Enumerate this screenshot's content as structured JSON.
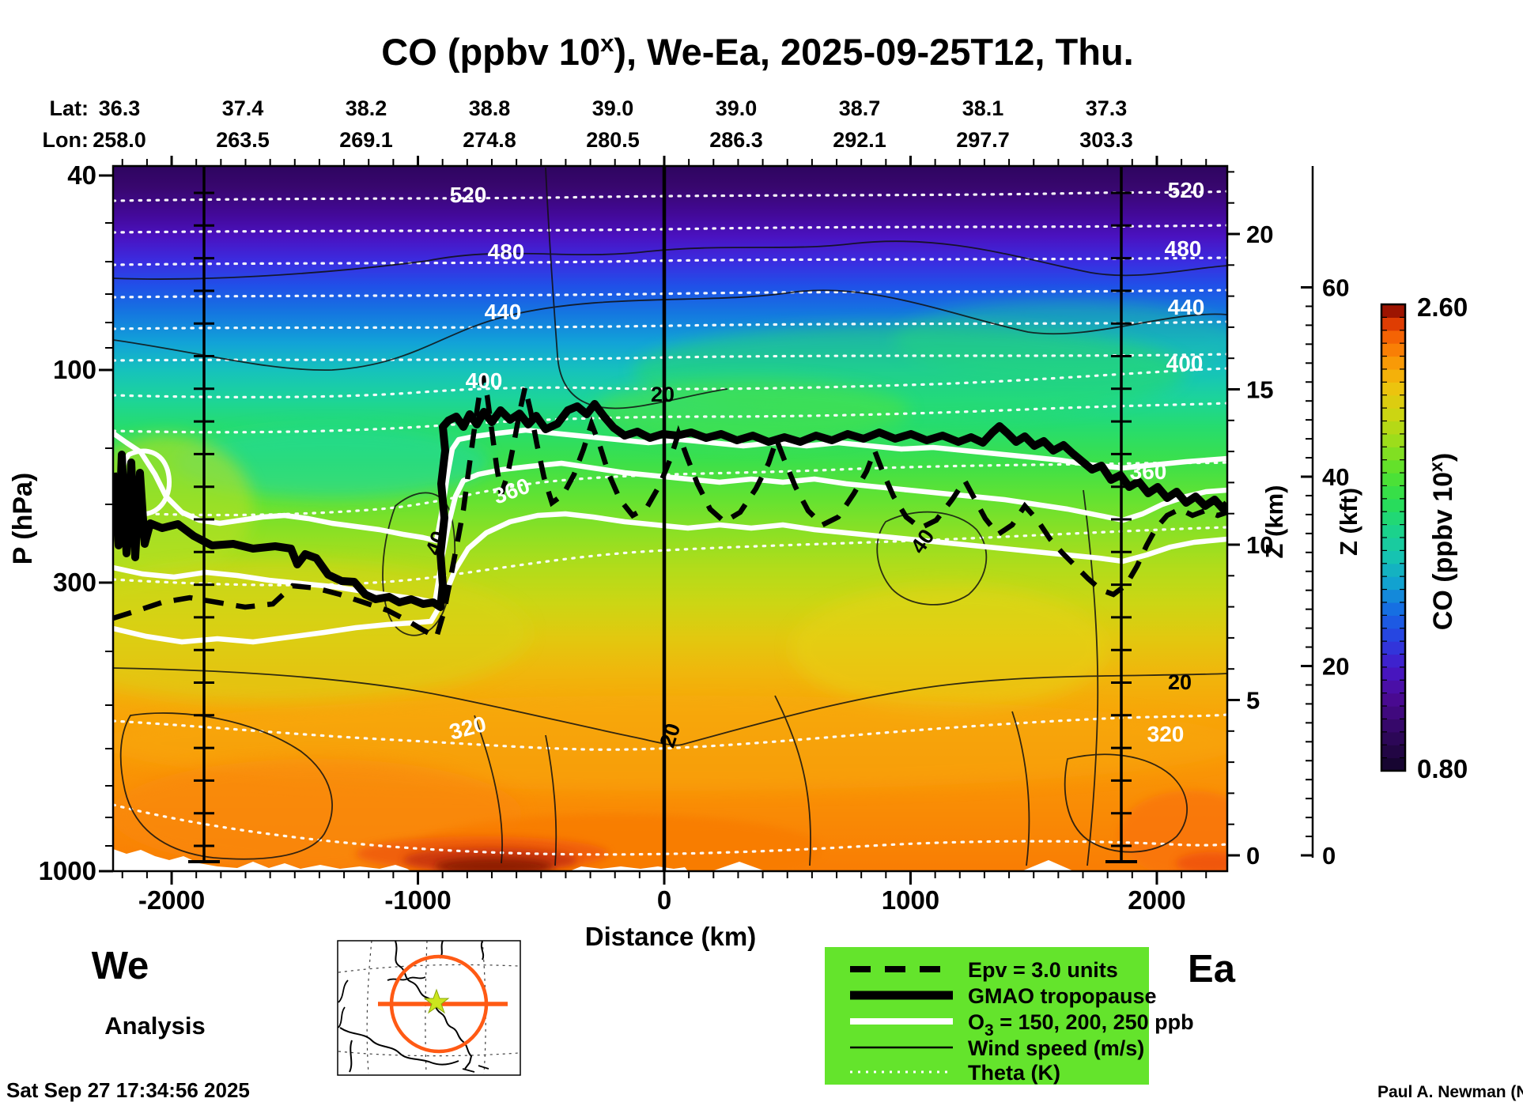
{
  "title": {
    "pre": "CO (ppbv 10",
    "sup": "x",
    "post": "), We-Ea, 2025-09-25T12, Thu."
  },
  "header": {
    "lat_label": "Lat:",
    "lon_label": "Lon:",
    "lat_values": [
      "36.3",
      "37.4",
      "38.2",
      "38.8",
      "39.0",
      "39.0",
      "38.7",
      "38.1",
      "37.3"
    ],
    "lon_values": [
      "258.0",
      "263.5",
      "269.1",
      "274.8",
      "280.5",
      "286.3",
      "292.1",
      "297.7",
      "303.3"
    ]
  },
  "axes": {
    "x": {
      "label": "Distance (km)",
      "ticks": [
        "-2000",
        "-1000",
        "0",
        "1000",
        "2000"
      ]
    },
    "y_pressure": {
      "label": "P (hPa)",
      "ticks": [
        "40",
        "100",
        "300",
        "1000"
      ]
    },
    "y_zkm": {
      "label": "Z (km)",
      "ticks": [
        "0",
        "5",
        "10",
        "15",
        "20"
      ]
    },
    "y_zkft": {
      "label": "Z (kft)",
      "ticks": [
        "0",
        "20",
        "40",
        "60"
      ]
    }
  },
  "colorbar": {
    "max": "2.60",
    "min": "0.80",
    "label_pre": "CO (ppbv 10",
    "label_sup": "x",
    "label_post": ")",
    "n_segments": 36,
    "stops": [
      {
        "v": 0.0,
        "c": "#120428"
      },
      {
        "v": 0.08,
        "c": "#30075e"
      },
      {
        "v": 0.16,
        "c": "#4c0a96"
      },
      {
        "v": 0.22,
        "c": "#4618c8"
      },
      {
        "v": 0.28,
        "c": "#2a3ee0"
      },
      {
        "v": 0.34,
        "c": "#1668e4"
      },
      {
        "v": 0.4,
        "c": "#12a0d2"
      },
      {
        "v": 0.46,
        "c": "#16c4b0"
      },
      {
        "v": 0.52,
        "c": "#1cd488"
      },
      {
        "v": 0.58,
        "c": "#2ade52"
      },
      {
        "v": 0.64,
        "c": "#56e22e"
      },
      {
        "v": 0.7,
        "c": "#96de1c"
      },
      {
        "v": 0.76,
        "c": "#cad612"
      },
      {
        "v": 0.82,
        "c": "#ecc40e"
      },
      {
        "v": 0.86,
        "c": "#f8a808"
      },
      {
        "v": 0.9,
        "c": "#f98205"
      },
      {
        "v": 0.94,
        "c": "#f25a04"
      },
      {
        "v": 0.97,
        "c": "#d32b02"
      },
      {
        "v": 1.0,
        "c": "#6e0000"
      }
    ]
  },
  "legend": {
    "bg": "#64E42C",
    "items": [
      {
        "label": "Epv = 3.0 units"
      },
      {
        "label": "GMAO tropopause"
      },
      {
        "label_pre": "O",
        "label_sub": "3",
        "label_post": " = 150, 200, 250 ppb"
      },
      {
        "label": "Wind speed (m/s)"
      },
      {
        "label": "Theta (K)"
      }
    ]
  },
  "corner": {
    "west": "We",
    "east": "Ea",
    "run_type": "Analysis",
    "timestamp": "Sat Sep 27 17:34:56 2025",
    "credit": "Paul A. Newman (NASA"
  },
  "contour_labels": {
    "theta": [
      "520",
      "480",
      "440",
      "400",
      "360",
      "320"
    ],
    "wind": [
      "20",
      "40"
    ]
  },
  "chart_data": {
    "type": "heatmap",
    "title": "CO (ppbv 10^x), We-Ea, 2025-09-25T12, Thu.",
    "xlabel": "Distance (km)",
    "x_range_km": [
      -2240,
      2290
    ],
    "x_ticks": [
      -2000,
      -1000,
      0,
      1000,
      2000
    ],
    "ylabel_left": "P (hPa)",
    "y_ticks_left": [
      40,
      100,
      300,
      1000
    ],
    "y_scale": "log-pressure (40 hPa top, 1000 hPa bottom)",
    "ylabel_right_inner": "Z (km)",
    "y_ticks_right_inner": [
      0,
      5,
      10,
      15,
      20
    ],
    "ylabel_right_outer": "Z (kft)",
    "y_ticks_right_outer": [
      0,
      20,
      40,
      60
    ],
    "colorbar": {
      "label": "CO (ppbv 10^x)",
      "min": 0.8,
      "max": 2.6,
      "n_segments": 36,
      "palette": "dark-violet -> blue -> cyan -> green -> yellow -> orange -> dark red"
    },
    "section": {
      "orientation": "We-Ea",
      "lat_deg": [
        36.3,
        37.4,
        38.2,
        38.8,
        39.0,
        39.0,
        38.7,
        38.1,
        37.3
      ],
      "lon_deg": [
        258.0,
        263.5,
        269.1,
        274.8,
        280.5,
        286.3,
        292.1,
        297.7,
        303.3
      ],
      "valid_time": "2025-09-25T12",
      "product": "Analysis",
      "plotted": "Sat Sep 27 17:34:56 2025",
      "range_marker_lines_km": [
        -1870,
        1860
      ]
    },
    "overlays": [
      {
        "name": "Epv = 3.0 units",
        "style": "thick dashed black line near/below tropopause with large zigzags mid-section"
      },
      {
        "name": "GMAO tropopause",
        "style": "thick solid black line, ~250 hPa west rising sharply to ~150 hPa east of -900 km, descending to ~230 hPa at east edge"
      },
      {
        "name": "O3 = 150, 200, 250 ppb",
        "style": "three thick solid white contours bracketing tropopause"
      },
      {
        "name": "Wind speed (m/s)",
        "style": "thin solid black contours",
        "labeled_values": [
          20,
          40
        ]
      },
      {
        "name": "Theta (K)",
        "style": "white dotted contours every 20 K",
        "labeled_values": [
          320,
          360,
          400,
          440,
          480,
          520
        ]
      }
    ]
  }
}
